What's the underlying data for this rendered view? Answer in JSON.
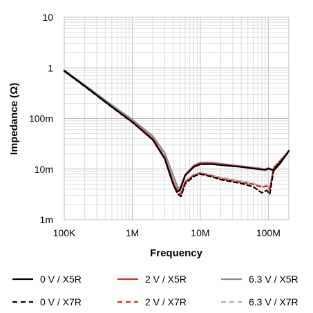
{
  "chart_data": {
    "type": "line",
    "title": "",
    "xlabel": "Frequency",
    "ylabel": "Impedance (Ω)",
    "x_scale": "log",
    "y_scale": "log",
    "xlim": [
      100000,
      200000000
    ],
    "ylim": [
      1,
      10000
    ],
    "grid": true,
    "legend_position": "bottom",
    "x_tick_labels": [
      {
        "value": 100000,
        "label": "100K"
      },
      {
        "value": 1000000,
        "label": "1M"
      },
      {
        "value": 10000000,
        "label": "10M"
      },
      {
        "value": 100000000,
        "label": "100M"
      }
    ],
    "y_tick_labels": [
      {
        "value": 10000,
        "label": "10"
      },
      {
        "value": 1000,
        "label": "1"
      },
      {
        "value": 100,
        "label": "100m"
      },
      {
        "value": 10,
        "label": "10m"
      },
      {
        "value": 1,
        "label": "1m"
      }
    ],
    "y_units": "mΩ",
    "series": [
      {
        "name": "0 V / X5R",
        "color": "#000000",
        "dash": "solid",
        "x": [
          100000,
          200000,
          500000,
          1000000,
          2000000,
          3000000,
          4000000,
          4500000,
          5000000,
          6000000,
          8000000,
          10000000,
          15000000,
          20000000,
          40000000,
          70000000,
          90000000,
          100000000,
          120000000,
          150000000,
          200000000
        ],
        "y": [
          880,
          440,
          170,
          85,
          38,
          16,
          5,
          3.5,
          3.8,
          7.5,
          11,
          12.5,
          12.5,
          12,
          11,
          10,
          9.6,
          10.2,
          9.5,
          13,
          23
        ]
      },
      {
        "name": "2 V / X5R",
        "color": "#d92b2b",
        "dash": "solid",
        "x": [
          100000,
          200000,
          500000,
          1000000,
          2000000,
          3000000,
          4000000,
          4500000,
          5000000,
          6000000,
          8000000,
          10000000,
          15000000,
          20000000,
          40000000,
          70000000,
          90000000,
          100000000,
          120000000,
          150000000,
          200000000
        ],
        "y": [
          870,
          435,
          172,
          87,
          40,
          17,
          5.5,
          3.8,
          4,
          7.8,
          11.5,
          13,
          13,
          12.3,
          11.2,
          10.2,
          9.8,
          10.3,
          9.3,
          13,
          23
        ]
      },
      {
        "name": "6.3 V / X5R",
        "color": "#8c8c8c",
        "dash": "solid",
        "x": [
          100000,
          200000,
          500000,
          1000000,
          2000000,
          3000000,
          4000000,
          4700000,
          5200000,
          6000000,
          8000000,
          10000000,
          15000000,
          20000000,
          40000000,
          70000000,
          90000000,
          100000000,
          120000000,
          150000000,
          200000000
        ],
        "y": [
          900,
          460,
          185,
          95,
          45,
          21,
          7.5,
          4.3,
          4.3,
          7.5,
          11.8,
          13.5,
          13.5,
          12.8,
          11.5,
          10.5,
          10,
          10.6,
          9.6,
          13.5,
          23.5
        ]
      },
      {
        "name": "0 V / X7R",
        "color": "#000000",
        "dash": "dashed",
        "x": [
          100000,
          200000,
          500000,
          1000000,
          2000000,
          3000000,
          4000000,
          4700000,
          5200000,
          6000000,
          8000000,
          10000000,
          15000000,
          20000000,
          40000000,
          60000000,
          80000000,
          95000000,
          105000000,
          120000000,
          150000000,
          200000000
        ],
        "y": [
          860,
          430,
          168,
          84,
          38,
          16,
          5,
          3.2,
          2.9,
          5.2,
          7.2,
          8,
          7,
          6.2,
          5.2,
          4.5,
          3.4,
          3.8,
          3.2,
          10,
          14,
          22
        ]
      },
      {
        "name": "2 V / X7R",
        "color": "#d92b2b",
        "dash": "dashed",
        "x": [
          100000,
          200000,
          500000,
          1000000,
          2000000,
          3000000,
          4000000,
          4700000,
          5200000,
          6000000,
          8000000,
          10000000,
          15000000,
          20000000,
          40000000,
          60000000,
          80000000,
          95000000,
          105000000,
          120000000,
          150000000,
          200000000
        ],
        "y": [
          870,
          437,
          172,
          87,
          39,
          17,
          5.6,
          3.5,
          3.2,
          5.6,
          7.6,
          8.3,
          7.3,
          6.5,
          5.5,
          5,
          4.4,
          4.6,
          4,
          10.5,
          14.5,
          22.5
        ]
      },
      {
        "name": "6.3 V / X7R",
        "color": "#b0b0b0",
        "dash": "dashed",
        "x": [
          100000,
          200000,
          500000,
          1000000,
          2000000,
          3000000,
          4000000,
          4800000,
          5300000,
          6000000,
          8000000,
          10000000,
          15000000,
          20000000,
          40000000,
          60000000,
          80000000,
          95000000,
          105000000,
          120000000,
          150000000,
          200000000
        ],
        "y": [
          890,
          455,
          182,
          94,
          44,
          20,
          7,
          3.8,
          3.5,
          5.8,
          7.8,
          8.5,
          7.6,
          6.8,
          5.8,
          5.2,
          4.6,
          4.8,
          4.2,
          11,
          15,
          23
        ]
      }
    ]
  }
}
